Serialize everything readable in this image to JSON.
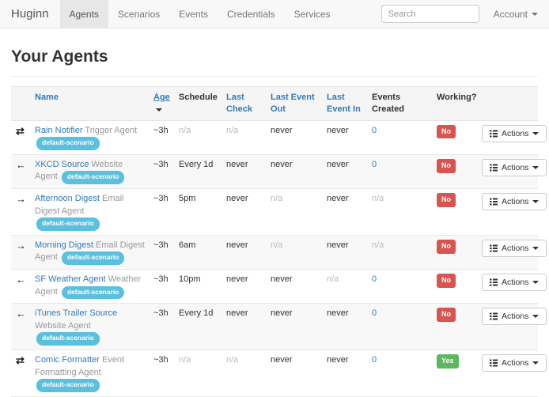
{
  "navbar": {
    "brand": "Huginn",
    "items": [
      {
        "label": "Agents",
        "active": true
      },
      {
        "label": "Scenarios",
        "active": false
      },
      {
        "label": "Events",
        "active": false
      },
      {
        "label": "Credentials",
        "active": false
      },
      {
        "label": "Services",
        "active": false
      }
    ],
    "search_placeholder": "Search",
    "account_label": "Account"
  },
  "page": {
    "title": "Your Agents"
  },
  "icons": {
    "swap-arrows": "⇄",
    "arrow-left": "←",
    "arrow-right": "→"
  },
  "table": {
    "actions_label": "Actions",
    "headers": [
      {
        "label": "",
        "link": false,
        "sorted": false
      },
      {
        "label": "Name",
        "link": true,
        "sorted": false
      },
      {
        "label": "Age",
        "link": true,
        "sorted": true
      },
      {
        "label": "Schedule",
        "link": false,
        "sorted": false
      },
      {
        "label": "Last Check",
        "link": true,
        "sorted": false
      },
      {
        "label": "Last Event Out",
        "link": true,
        "sorted": false
      },
      {
        "label": "Last Event In",
        "link": true,
        "sorted": false
      },
      {
        "label": "Events Created",
        "link": false,
        "sorted": false
      },
      {
        "label": "Working?",
        "link": false,
        "sorted": false
      },
      {
        "label": "",
        "link": false,
        "sorted": false
      }
    ],
    "rows": [
      {
        "icon": "swap-arrows",
        "name": "Rain Notifier",
        "type": "Trigger Agent",
        "badge": "default-scenario",
        "age": "~3h",
        "schedule": "n/a",
        "last_check": "n/a",
        "last_event_out": "never",
        "last_event_in": "never",
        "events_created": "0",
        "working": "No"
      },
      {
        "icon": "arrow-left",
        "name": "XKCD Source",
        "type": "Website Agent",
        "badge": "default-scenario",
        "age": "~3h",
        "schedule": "Every 1d",
        "last_check": "never",
        "last_event_out": "never",
        "last_event_in": "never",
        "events_created": "0",
        "working": "No"
      },
      {
        "icon": "arrow-right",
        "name": "Afternoon Digest",
        "type": "Email Digest Agent",
        "badge": "default-scenario",
        "age": "~3h",
        "schedule": "5pm",
        "last_check": "never",
        "last_event_out": "n/a",
        "last_event_in": "never",
        "events_created": "n/a",
        "working": "No"
      },
      {
        "icon": "arrow-right",
        "name": "Morning Digest",
        "type": "Email Digest Agent",
        "badge": "default-scenario",
        "age": "~3h",
        "schedule": "6am",
        "last_check": "never",
        "last_event_out": "n/a",
        "last_event_in": "never",
        "events_created": "n/a",
        "working": "No"
      },
      {
        "icon": "arrow-left",
        "name": "SF Weather Agent",
        "type": "Weather Agent",
        "badge": "default-scenario",
        "age": "~3h",
        "schedule": "10pm",
        "last_check": "never",
        "last_event_out": "never",
        "last_event_in": "n/a",
        "events_created": "0",
        "working": "No"
      },
      {
        "icon": "arrow-left",
        "name": "iTunes Trailer Source",
        "type": "Website Agent",
        "badge": "default-scenario",
        "age": "~3h",
        "schedule": "Every 1d",
        "last_check": "never",
        "last_event_out": "never",
        "last_event_in": "never",
        "events_created": "0",
        "working": "No"
      },
      {
        "icon": "swap-arrows",
        "name": "Comic Formatter",
        "type": "Event Formatting Agent",
        "badge": "default-scenario",
        "age": "~3h",
        "schedule": "n/a",
        "last_check": "n/a",
        "last_event_out": "never",
        "last_event_in": "never",
        "events_created": "0",
        "working": "Yes"
      }
    ]
  }
}
